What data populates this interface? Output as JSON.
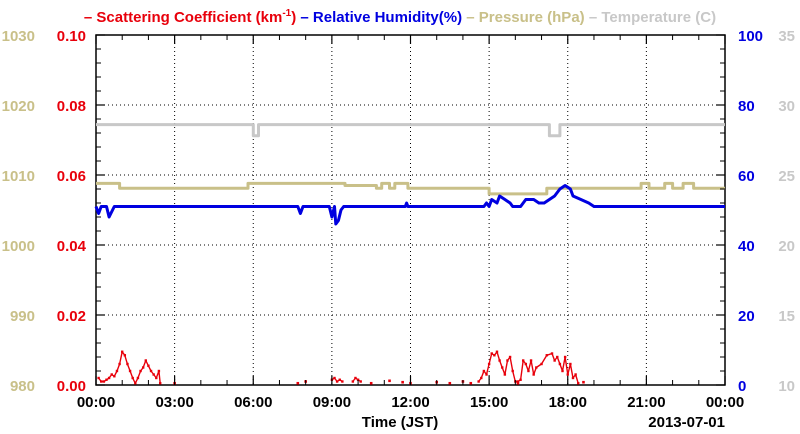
{
  "chart_data": {
    "type": "line",
    "legend": [
      {
        "dash": "–",
        "text": "Scattering Coefficient (km",
        "sup": "-1",
        "close": ")",
        "color": "#e8000b"
      },
      {
        "dash": "–",
        "text": "Relative Humidity(%)",
        "color": "#0000e0"
      },
      {
        "dash": "–",
        "text": "Pressure (hPa)",
        "color": "#c9c089"
      },
      {
        "dash": "–",
        "text": "Temperature (C)",
        "color": "#c8c8c8"
      }
    ],
    "xlabel": "Time (JST)",
    "date_label": "2013-07-01",
    "x_ticks": [
      "00:00",
      "03:00",
      "06:00",
      "09:00",
      "12:00",
      "15:00",
      "18:00",
      "21:00",
      "00:00"
    ],
    "x_range_hours": [
      0,
      24
    ],
    "grid": true,
    "axes": {
      "pressure": {
        "range": [
          980,
          1030
        ],
        "ticks": [
          "980",
          "990",
          "1000",
          "1010",
          "1020",
          "1030"
        ],
        "color": "#c9c089",
        "side": "left-outer"
      },
      "scattering": {
        "range": [
          0,
          0.1
        ],
        "ticks": [
          "0.00",
          "0.02",
          "0.04",
          "0.06",
          "0.08",
          "0.10"
        ],
        "color": "#e8000b",
        "side": "left-inner"
      },
      "humidity": {
        "range": [
          0,
          100
        ],
        "ticks": [
          "0",
          "20",
          "40",
          "60",
          "80",
          "100"
        ],
        "color": "#0000e0",
        "side": "right-inner"
      },
      "temperature": {
        "range": [
          10,
          35
        ],
        "ticks": [
          "10",
          "15",
          "20",
          "25",
          "30",
          "35"
        ],
        "color": "#c8c8c8",
        "side": "right-outer"
      }
    },
    "series": [
      {
        "axis": "temperature",
        "color": "#c8c8c8",
        "points": [
          [
            0,
            28.6
          ],
          [
            6.0,
            28.6
          ],
          [
            6.0,
            27.8
          ],
          [
            6.2,
            27.8
          ],
          [
            6.2,
            28.6
          ],
          [
            17.3,
            28.6
          ],
          [
            17.3,
            27.8
          ],
          [
            17.7,
            27.8
          ],
          [
            17.7,
            28.6
          ],
          [
            24,
            28.6
          ]
        ]
      },
      {
        "axis": "pressure",
        "color": "#c9c089",
        "points": [
          [
            0,
            1008.8
          ],
          [
            0.9,
            1008.8
          ],
          [
            0.9,
            1008.1
          ],
          [
            5.8,
            1008.1
          ],
          [
            5.8,
            1008.8
          ],
          [
            9.5,
            1008.8
          ],
          [
            9.5,
            1008.5
          ],
          [
            10.7,
            1008.5
          ],
          [
            10.7,
            1008.1
          ],
          [
            10.9,
            1008.1
          ],
          [
            10.9,
            1008.8
          ],
          [
            11.2,
            1008.8
          ],
          [
            11.2,
            1008.1
          ],
          [
            11.4,
            1008.1
          ],
          [
            11.4,
            1008.8
          ],
          [
            11.9,
            1008.8
          ],
          [
            11.9,
            1008.1
          ],
          [
            15.0,
            1008.1
          ],
          [
            15.0,
            1007.3
          ],
          [
            17.2,
            1007.3
          ],
          [
            17.2,
            1008.1
          ],
          [
            20.8,
            1008.1
          ],
          [
            20.8,
            1008.8
          ],
          [
            21.1,
            1008.8
          ],
          [
            21.1,
            1008.1
          ],
          [
            21.7,
            1008.1
          ],
          [
            21.7,
            1008.8
          ],
          [
            22.0,
            1008.8
          ],
          [
            22.0,
            1008.1
          ],
          [
            22.4,
            1008.1
          ],
          [
            22.4,
            1008.8
          ],
          [
            22.8,
            1008.8
          ],
          [
            22.8,
            1008.1
          ],
          [
            24,
            1008.1
          ]
        ]
      },
      {
        "axis": "humidity",
        "color": "#0000e0",
        "points": [
          [
            0,
            51
          ],
          [
            0.1,
            49
          ],
          [
            0.2,
            51
          ],
          [
            0.4,
            51
          ],
          [
            0.5,
            48
          ],
          [
            0.7,
            51
          ],
          [
            7.7,
            51
          ],
          [
            7.8,
            49
          ],
          [
            7.9,
            51
          ],
          [
            8.9,
            51
          ],
          [
            9.0,
            48
          ],
          [
            9.1,
            51
          ],
          [
            9.15,
            46
          ],
          [
            9.25,
            47
          ],
          [
            9.35,
            50
          ],
          [
            9.45,
            51
          ],
          [
            11.8,
            51
          ],
          [
            11.85,
            52
          ],
          [
            11.9,
            51
          ],
          [
            14.8,
            51
          ],
          [
            14.9,
            52
          ],
          [
            15.0,
            51
          ],
          [
            15.1,
            53
          ],
          [
            15.3,
            52
          ],
          [
            15.4,
            54
          ],
          [
            15.6,
            53
          ],
          [
            15.8,
            52
          ],
          [
            15.9,
            51
          ],
          [
            16.2,
            51
          ],
          [
            16.4,
            53
          ],
          [
            16.7,
            53
          ],
          [
            16.9,
            52
          ],
          [
            17.1,
            52
          ],
          [
            17.3,
            53
          ],
          [
            17.5,
            54
          ],
          [
            17.7,
            56
          ],
          [
            17.9,
            57
          ],
          [
            18.1,
            56
          ],
          [
            18.2,
            54
          ],
          [
            18.5,
            53
          ],
          [
            18.8,
            52
          ],
          [
            19.0,
            51
          ],
          [
            24,
            51
          ]
        ]
      },
      {
        "axis": "scattering",
        "color": "#e8000b",
        "points": [
          [
            0.1,
            0.002
          ],
          [
            0.2,
            0.001
          ],
          [
            0.3,
            0.001
          ],
          [
            0.4,
            0.0015
          ],
          [
            0.5,
            0.002
          ],
          [
            0.6,
            0.003
          ],
          [
            0.7,
            0.0025
          ],
          [
            0.8,
            0.004
          ],
          [
            0.9,
            0.006
          ],
          [
            1.0,
            0.0095
          ],
          [
            1.1,
            0.0085
          ],
          [
            1.2,
            0.006
          ],
          [
            1.3,
            0.004
          ],
          [
            1.4,
            0.002
          ],
          [
            1.5,
            0.0005
          ],
          [
            1.6,
            0.002
          ],
          [
            1.7,
            0.004
          ],
          [
            1.8,
            0.005
          ],
          [
            1.9,
            0.007
          ],
          [
            2.0,
            0.0055
          ],
          [
            2.1,
            0.004
          ],
          [
            2.2,
            0.003
          ],
          [
            2.3,
            0.002
          ],
          [
            2.4,
            0.004
          ],
          [
            2.45,
            0.0005
          ]
        ]
      },
      {
        "axis": "scattering",
        "color": "#e8000b",
        "points": [
          [
            9.0,
            0.0015
          ],
          [
            9.1,
            0.002
          ],
          [
            9.2,
            0.001
          ],
          [
            9.3,
            0.0015
          ],
          [
            9.4,
            0.001
          ]
        ]
      },
      {
        "axis": "scattering",
        "color": "#e8000b",
        "points": [
          [
            9.8,
            0.001
          ],
          [
            9.9,
            0.002
          ],
          [
            10.0,
            0.0015
          ],
          [
            10.1,
            0.001
          ]
        ]
      },
      {
        "axis": "scattering",
        "color": "#e8000b",
        "points": [
          [
            14.6,
            0.001
          ],
          [
            14.7,
            0.002
          ],
          [
            14.8,
            0.004
          ],
          [
            14.9,
            0.003
          ],
          [
            15.0,
            0.006
          ],
          [
            15.1,
            0.009
          ],
          [
            15.2,
            0.0085
          ],
          [
            15.3,
            0.0095
          ],
          [
            15.4,
            0.007
          ],
          [
            15.5,
            0.005
          ],
          [
            15.6,
            0.003
          ],
          [
            15.7,
            0.007
          ],
          [
            15.8,
            0.008
          ],
          [
            15.9,
            0.004
          ],
          [
            16.0,
            0.001
          ],
          [
            16.1,
            0.001
          ],
          [
            16.2,
            0.0015
          ],
          [
            16.3,
            0.007
          ],
          [
            16.4,
            0.006
          ],
          [
            16.5,
            0.004
          ],
          [
            16.6,
            0.007
          ],
          [
            16.7,
            0.003
          ],
          [
            16.8,
            0.005
          ],
          [
            17.0,
            0.006
          ],
          [
            17.2,
            0.0085
          ],
          [
            17.4,
            0.009
          ],
          [
            17.5,
            0.007
          ],
          [
            17.6,
            0.008
          ],
          [
            17.7,
            0.006
          ],
          [
            17.8,
            0.004
          ],
          [
            17.9,
            0.008
          ],
          [
            18.0,
            0.003
          ],
          [
            18.1,
            0.006
          ],
          [
            18.2,
            0.002
          ],
          [
            18.3,
            0.003
          ],
          [
            18.4,
            0.0005
          ]
        ]
      }
    ],
    "scatter_points": [
      {
        "axis": "scattering",
        "color": "#e8000b",
        "points": [
          [
            3.0,
            0.0005
          ],
          [
            7.7,
            0.0005
          ],
          [
            8.0,
            0.001
          ],
          [
            10.5,
            0.0005
          ],
          [
            11.2,
            0.0012
          ],
          [
            11.7,
            0.0008
          ],
          [
            12.0,
            0.0005
          ],
          [
            13.0,
            0.0008
          ],
          [
            13.5,
            0.0005
          ],
          [
            14.0,
            0.001
          ],
          [
            14.3,
            0.0005
          ],
          [
            16.1,
            0.0005
          ],
          [
            18.6,
            0.0008
          ]
        ]
      }
    ]
  }
}
